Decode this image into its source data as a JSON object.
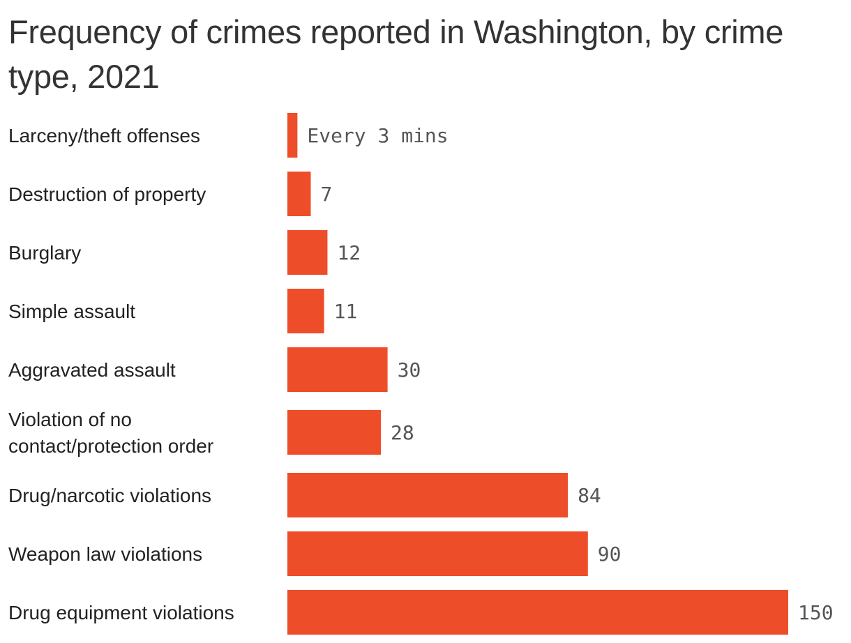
{
  "chart_data": {
    "type": "bar",
    "orientation": "horizontal",
    "title": "Frequency of crimes reported in Washington, by crime type, 2021",
    "categories": [
      "Larceny/theft offenses",
      "Destruction of property",
      "Burglary",
      "Simple assault",
      "Aggravated assault",
      "Violation of no contact/protection order",
      "Drug/narcotic violations",
      "Weapon law violations",
      "Drug equipment violations"
    ],
    "values": [
      3,
      7,
      12,
      11,
      30,
      28,
      84,
      90,
      150
    ],
    "value_labels": [
      "Every 3 mins",
      "7",
      "12",
      "11",
      "30",
      "28",
      "84",
      "90",
      "150"
    ],
    "xlim": [
      0,
      150
    ],
    "grid": false,
    "bar_color": "#EE4D2A"
  }
}
